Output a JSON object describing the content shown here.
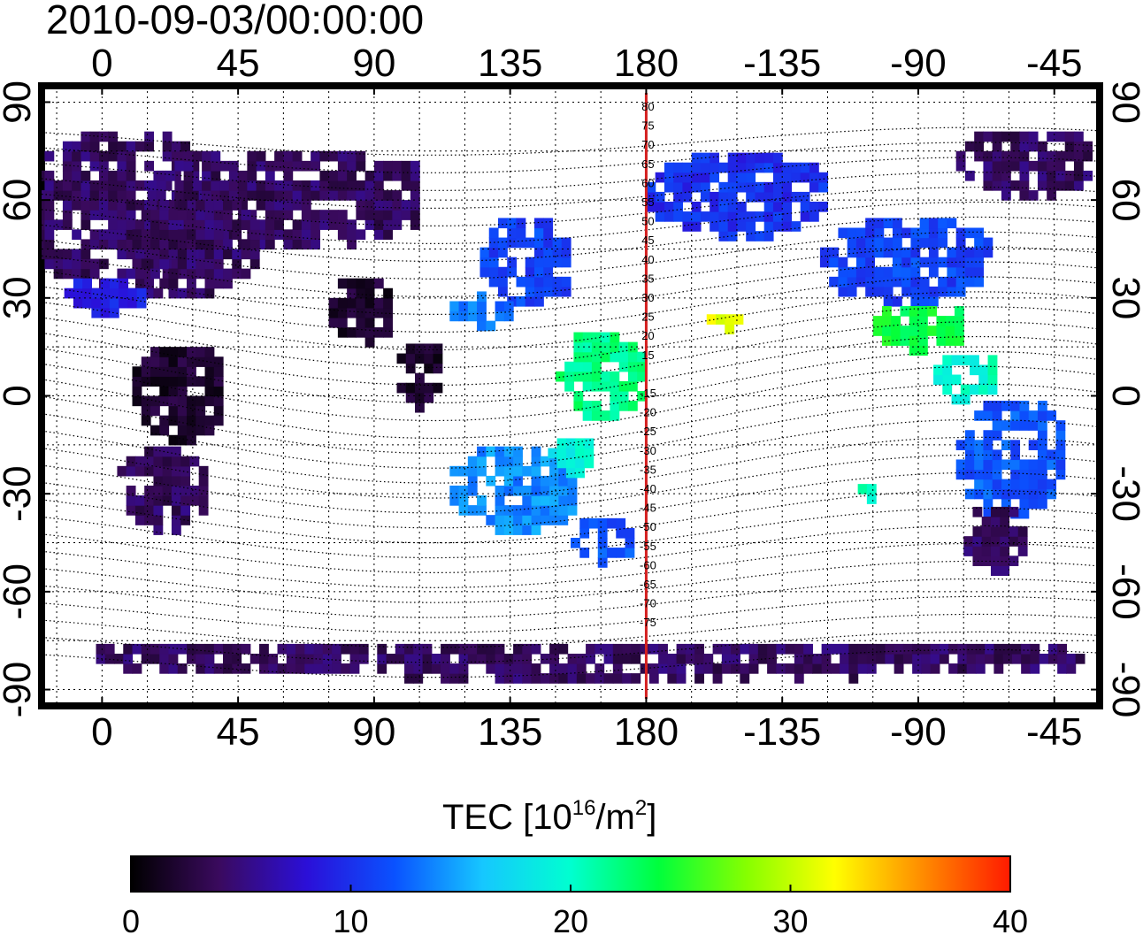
{
  "timestamp": "2010-09-03/00:00:00",
  "map": {
    "lon_ticks": [
      "0",
      "45",
      "90",
      "135",
      "180",
      "-135",
      "-90",
      "-45"
    ],
    "lat_ticks": [
      "90",
      "60",
      "30",
      "0",
      "-30",
      "-60",
      "-90"
    ],
    "magnetic_lat_labels": [
      "80",
      "75",
      "70",
      "65",
      "60",
      "55",
      "50",
      "45",
      "40",
      "35",
      "30",
      "25",
      "20",
      "15",
      "",
      "-15",
      "-20",
      "-25",
      "-30",
      "-35",
      "-40",
      "-45",
      "-50",
      "-55",
      "-60",
      "-65",
      "-70",
      "-75"
    ],
    "meridian_line": {
      "lon": "180",
      "color": "#d42020"
    },
    "lon_range": [
      -20,
      330
    ],
    "lat_range": [
      -95,
      95
    ],
    "regions": [
      {
        "lon": 5,
        "lat": 55,
        "w": 60,
        "h": 50,
        "tec": 4
      },
      {
        "lon": 60,
        "lat": 60,
        "w": 90,
        "h": 30,
        "tec": 4
      },
      {
        "lon": 30,
        "lat": 45,
        "w": 40,
        "h": 30,
        "tec": 4
      },
      {
        "lon": 0,
        "lat": 30,
        "w": 25,
        "h": 12,
        "tec": 9
      },
      {
        "lon": 25,
        "lat": 0,
        "w": 30,
        "h": 30,
        "tec": 2
      },
      {
        "lon": 20,
        "lat": -30,
        "w": 30,
        "h": 25,
        "tec": 4
      },
      {
        "lon": 85,
        "lat": 25,
        "w": 20,
        "h": 20,
        "tec": 2
      },
      {
        "lon": 105,
        "lat": 5,
        "w": 15,
        "h": 20,
        "tec": 2
      },
      {
        "lon": 140,
        "lat": 40,
        "w": 30,
        "h": 25,
        "tec": 11
      },
      {
        "lon": 125,
        "lat": 25,
        "w": 20,
        "h": 10,
        "tec": 13
      },
      {
        "lon": 165,
        "lat": 5,
        "w": 30,
        "h": 25,
        "tec": 22
      },
      {
        "lon": 135,
        "lat": -30,
        "w": 40,
        "h": 25,
        "tec": 14
      },
      {
        "lon": 155,
        "lat": -20,
        "w": 15,
        "h": 10,
        "tec": 19
      },
      {
        "lon": 165,
        "lat": -45,
        "w": 20,
        "h": 15,
        "tec": 12
      },
      {
        "lon": 210,
        "lat": 60,
        "w": 60,
        "h": 25,
        "tec": 10
      },
      {
        "lon": 265,
        "lat": 40,
        "w": 55,
        "h": 25,
        "tec": 11
      },
      {
        "lon": 270,
        "lat": 20,
        "w": 30,
        "h": 15,
        "tec": 24
      },
      {
        "lon": 285,
        "lat": 5,
        "w": 20,
        "h": 15,
        "tec": 20
      },
      {
        "lon": 300,
        "lat": -20,
        "w": 35,
        "h": 35,
        "tec": 12
      },
      {
        "lon": 295,
        "lat": -45,
        "w": 20,
        "h": 20,
        "tec": 4
      },
      {
        "lon": 305,
        "lat": 70,
        "w": 45,
        "h": 20,
        "tec": 4
      },
      {
        "lon": 160,
        "lat": -82,
        "w": 330,
        "h": 12,
        "tec": 4
      },
      {
        "lon": 205,
        "lat": 22,
        "w": 10,
        "h": 6,
        "tec": 32
      },
      {
        "lon": 253,
        "lat": -30,
        "w": 6,
        "h": 6,
        "tec": 21
      }
    ]
  },
  "colorbar": {
    "title_main": "TEC  [10",
    "title_exp1": "16",
    "title_mid": "/m",
    "title_exp2": "2",
    "title_end": "]",
    "ticks": [
      "0",
      "10",
      "20",
      "30",
      "40"
    ],
    "colors": [
      "#000000",
      "#3a0a5e",
      "#2b0fd8",
      "#0a52ff",
      "#16c7ff",
      "#00ffd0",
      "#00ff3c",
      "#86ff00",
      "#ffff00",
      "#ff8c00",
      "#ff1a00"
    ]
  }
}
